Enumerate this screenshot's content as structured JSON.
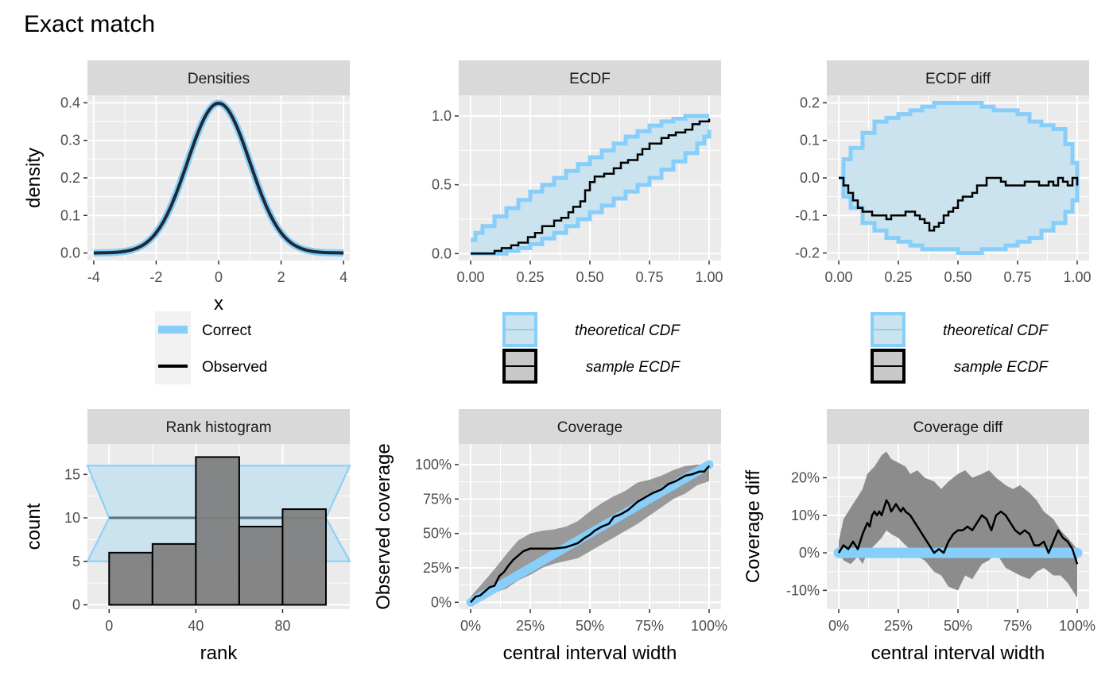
{
  "title": "Exact match",
  "colors": {
    "panel_bg": "#ebebeb",
    "strip_bg": "#d9d9d9",
    "grid": "#ffffff",
    "correct": "#87cefa",
    "band_fill": "#cbe3ee",
    "observed": "#000000",
    "hist_fill": "#7f7f7f",
    "cov_band": "#999999",
    "cov_diff_band": "#8c8c8c"
  },
  "chart_data": [
    {
      "id": "densities",
      "type": "line",
      "strip": "Densities",
      "xlabel": "x",
      "ylabel": "density",
      "xlim": [
        -4.2,
        4.2
      ],
      "ylim": [
        -0.02,
        0.42
      ],
      "xticks": [
        -4,
        -2,
        0,
        2,
        4
      ],
      "xtick_labels": [
        "-4",
        "-2",
        "0",
        "2",
        "4"
      ],
      "yticks": [
        0.0,
        0.1,
        0.2,
        0.3,
        0.4
      ],
      "ytick_labels": [
        "0.0",
        "0.1",
        "0.2",
        "0.3",
        "0.4"
      ],
      "series": [
        {
          "name": "Correct",
          "kind": "normal_density",
          "mean": 0,
          "sd": 1,
          "x_range": [
            -4,
            4
          ]
        },
        {
          "name": "Observed",
          "kind": "normal_density",
          "mean": 0,
          "sd": 1,
          "x_range": [
            -4,
            4
          ]
        }
      ],
      "legend": {
        "entries": [
          "Correct",
          "Observed"
        ]
      }
    },
    {
      "id": "ecdf",
      "type": "step",
      "strip": "ECDF",
      "xlim": [
        -0.05,
        1.05
      ],
      "ylim": [
        -0.05,
        1.15
      ],
      "xticks": [
        0,
        0.25,
        0.5,
        0.75,
        1
      ],
      "xtick_labels": [
        "0.00",
        "0.25",
        "0.50",
        "0.75",
        "1.00"
      ],
      "yticks": [
        0,
        0.5,
        1
      ],
      "ytick_labels": [
        "0.0",
        "0.5",
        "1.0"
      ],
      "band": {
        "x": [
          0,
          0.02,
          0.05,
          0.1,
          0.15,
          0.2,
          0.25,
          0.3,
          0.35,
          0.4,
          0.45,
          0.5,
          0.55,
          0.6,
          0.65,
          0.7,
          0.75,
          0.8,
          0.85,
          0.9,
          0.95,
          0.98,
          1
        ],
        "lower": [
          0,
          0,
          0,
          0,
          0.02,
          0.04,
          0.07,
          0.11,
          0.15,
          0.2,
          0.25,
          0.3,
          0.35,
          0.4,
          0.45,
          0.5,
          0.55,
          0.61,
          0.67,
          0.73,
          0.8,
          0.85,
          0.9
        ],
        "upper": [
          0.1,
          0.15,
          0.2,
          0.27,
          0.33,
          0.39,
          0.45,
          0.5,
          0.55,
          0.6,
          0.65,
          0.7,
          0.75,
          0.8,
          0.85,
          0.89,
          0.93,
          0.96,
          0.98,
          1,
          1,
          1,
          1
        ]
      },
      "ecdf": {
        "x": [
          0,
          0.1,
          0.13,
          0.17,
          0.2,
          0.24,
          0.27,
          0.3,
          0.35,
          0.38,
          0.41,
          0.43,
          0.46,
          0.48,
          0.5,
          0.52,
          0.56,
          0.6,
          0.63,
          0.66,
          0.7,
          0.72,
          0.75,
          0.78,
          0.8,
          0.83,
          0.86,
          0.9,
          0.93,
          0.96,
          1
        ],
        "y": [
          0,
          0.02,
          0.04,
          0.06,
          0.08,
          0.12,
          0.15,
          0.2,
          0.24,
          0.26,
          0.3,
          0.34,
          0.38,
          0.46,
          0.52,
          0.56,
          0.58,
          0.62,
          0.66,
          0.68,
          0.72,
          0.76,
          0.8,
          0.8,
          0.84,
          0.86,
          0.88,
          0.9,
          0.94,
          0.96,
          0.98
        ]
      },
      "legend": {
        "entries": [
          "theoretical CDF",
          "sample ECDF"
        ]
      }
    },
    {
      "id": "ecdf_diff",
      "type": "step",
      "strip": "ECDF diff",
      "xlim": [
        -0.05,
        1.05
      ],
      "ylim": [
        -0.22,
        0.22
      ],
      "xticks": [
        0,
        0.25,
        0.5,
        0.75,
        1
      ],
      "xtick_labels": [
        "0.00",
        "0.25",
        "0.50",
        "0.75",
        "1.00"
      ],
      "yticks": [
        -0.2,
        -0.1,
        0,
        0.1,
        0.2
      ],
      "ytick_labels": [
        "-0.2",
        "-0.1",
        "0.0",
        "0.1",
        "0.2"
      ],
      "band": {
        "x": [
          0,
          0.02,
          0.05,
          0.1,
          0.15,
          0.2,
          0.25,
          0.3,
          0.35,
          0.4,
          0.45,
          0.5,
          0.55,
          0.6,
          0.65,
          0.7,
          0.75,
          0.8,
          0.85,
          0.9,
          0.95,
          0.98,
          1
        ],
        "lower": [
          0,
          -0.05,
          -0.08,
          -0.12,
          -0.14,
          -0.16,
          -0.17,
          -0.18,
          -0.19,
          -0.19,
          -0.19,
          -0.2,
          -0.2,
          -0.19,
          -0.19,
          -0.18,
          -0.17,
          -0.16,
          -0.14,
          -0.12,
          -0.09,
          -0.06,
          0
        ],
        "upper": [
          0,
          0.05,
          0.08,
          0.12,
          0.15,
          0.16,
          0.17,
          0.18,
          0.19,
          0.2,
          0.2,
          0.2,
          0.2,
          0.19,
          0.18,
          0.18,
          0.17,
          0.15,
          0.14,
          0.13,
          0.09,
          0.04,
          0
        ]
      },
      "ecdf": {
        "x": [
          0,
          0.02,
          0.04,
          0.06,
          0.08,
          0.1,
          0.12,
          0.14,
          0.16,
          0.18,
          0.2,
          0.22,
          0.24,
          0.26,
          0.28,
          0.3,
          0.32,
          0.34,
          0.36,
          0.38,
          0.4,
          0.42,
          0.44,
          0.46,
          0.48,
          0.5,
          0.52,
          0.54,
          0.56,
          0.58,
          0.6,
          0.62,
          0.64,
          0.66,
          0.68,
          0.7,
          0.72,
          0.74,
          0.76,
          0.78,
          0.8,
          0.82,
          0.84,
          0.86,
          0.88,
          0.9,
          0.92,
          0.94,
          0.96,
          0.98,
          1
        ],
        "y": [
          0,
          -0.02,
          -0.04,
          -0.06,
          -0.08,
          -0.09,
          -0.09,
          -0.1,
          -0.1,
          -0.1,
          -0.11,
          -0.1,
          -0.1,
          -0.1,
          -0.09,
          -0.09,
          -0.1,
          -0.11,
          -0.12,
          -0.14,
          -0.13,
          -0.12,
          -0.1,
          -0.09,
          -0.08,
          -0.06,
          -0.05,
          -0.05,
          -0.04,
          -0.02,
          -0.02,
          0,
          0,
          0,
          -0.01,
          -0.02,
          -0.02,
          -0.02,
          -0.02,
          -0.01,
          -0.01,
          -0.01,
          -0.02,
          -0.02,
          -0.01,
          -0.02,
          0,
          -0.01,
          -0.02,
          0,
          -0.02
        ]
      },
      "legend": {
        "entries": [
          "theoretical CDF",
          "sample ECDF"
        ]
      }
    },
    {
      "id": "rank_hist",
      "type": "bar",
      "strip": "Rank histogram",
      "xlabel": "rank",
      "ylabel": "count",
      "xlim": [
        -10,
        111
      ],
      "ylim": [
        -0.5,
        18.5
      ],
      "xticks": [
        0,
        40,
        80
      ],
      "xtick_labels": [
        "0",
        "40",
        "80"
      ],
      "yticks": [
        0,
        5,
        10,
        15
      ],
      "ytick_labels": [
        "0",
        "5",
        "10",
        "15"
      ],
      "bins": [
        [
          0,
          20
        ],
        [
          20,
          40
        ],
        [
          40,
          60
        ],
        [
          60,
          80
        ],
        [
          80,
          100
        ]
      ],
      "values": [
        6,
        7,
        17,
        9,
        11
      ],
      "band": {
        "x_extent": [
          -10,
          111
        ],
        "outer_lower": 5,
        "outer_upper": 16,
        "center": 10,
        "center_x": [
          0,
          100
        ]
      }
    },
    {
      "id": "coverage",
      "type": "line",
      "strip": "Coverage",
      "xlabel": "central interval width",
      "ylabel": "Observed coverage",
      "xlim": [
        -0.05,
        1.05
      ],
      "ylim": [
        -0.05,
        1.15
      ],
      "xticks": [
        0,
        0.25,
        0.5,
        0.75,
        1
      ],
      "xtick_labels": [
        "0%",
        "25%",
        "50%",
        "75%",
        "100%"
      ],
      "yticks": [
        0,
        0.25,
        0.5,
        0.75,
        1
      ],
      "ytick_labels": [
        "0%",
        "25%",
        "50%",
        "75%",
        "100%"
      ],
      "band": {
        "x": [
          0,
          0.02,
          0.05,
          0.1,
          0.15,
          0.2,
          0.25,
          0.3,
          0.35,
          0.4,
          0.45,
          0.5,
          0.55,
          0.6,
          0.65,
          0.7,
          0.75,
          0.8,
          0.85,
          0.9,
          0.95,
          1
        ],
        "lower": [
          0,
          0,
          0.02,
          0.07,
          0.1,
          0.16,
          0.2,
          0.25,
          0.28,
          0.3,
          0.32,
          0.37,
          0.42,
          0.47,
          0.52,
          0.57,
          0.63,
          0.69,
          0.75,
          0.79,
          0.85,
          0.88
        ],
        "upper": [
          0.04,
          0.08,
          0.14,
          0.24,
          0.35,
          0.45,
          0.5,
          0.52,
          0.53,
          0.55,
          0.59,
          0.66,
          0.72,
          0.77,
          0.81,
          0.87,
          0.89,
          0.92,
          0.96,
          0.99,
          1,
          1
        ]
      },
      "observed": {
        "x": [
          0,
          0.02,
          0.04,
          0.06,
          0.08,
          0.1,
          0.12,
          0.14,
          0.16,
          0.18,
          0.2,
          0.22,
          0.25,
          0.3,
          0.35,
          0.4,
          0.45,
          0.48,
          0.5,
          0.52,
          0.55,
          0.58,
          0.6,
          0.63,
          0.66,
          0.7,
          0.73,
          0.76,
          0.8,
          0.83,
          0.86,
          0.9,
          0.93,
          0.96,
          0.98,
          1
        ],
        "y": [
          0,
          0.04,
          0.05,
          0.08,
          0.11,
          0.12,
          0.19,
          0.22,
          0.27,
          0.31,
          0.34,
          0.37,
          0.39,
          0.39,
          0.39,
          0.4,
          0.43,
          0.47,
          0.49,
          0.52,
          0.55,
          0.57,
          0.62,
          0.64,
          0.67,
          0.73,
          0.76,
          0.79,
          0.82,
          0.86,
          0.88,
          0.92,
          0.93,
          0.95,
          0.95,
          0.99
        ]
      },
      "reference": {
        "x": [
          0,
          1
        ],
        "y": [
          0,
          1
        ]
      }
    },
    {
      "id": "coverage_diff",
      "type": "line",
      "strip": "Coverage diff",
      "xlabel": "central interval width",
      "ylabel": "Coverage diff",
      "xlim": [
        -0.05,
        1.05
      ],
      "ylim": [
        -0.15,
        0.29
      ],
      "xticks": [
        0,
        0.25,
        0.5,
        0.75,
        1
      ],
      "xtick_labels": [
        "0%",
        "25%",
        "50%",
        "75%",
        "100%"
      ],
      "yticks": [
        -0.1,
        0,
        0.1,
        0.2
      ],
      "ytick_labels": [
        "-10%",
        "0%",
        "10%",
        "20%"
      ],
      "band": {
        "x": [
          0,
          0.02,
          0.05,
          0.08,
          0.1,
          0.12,
          0.15,
          0.18,
          0.2,
          0.22,
          0.25,
          0.28,
          0.3,
          0.33,
          0.36,
          0.4,
          0.43,
          0.46,
          0.5,
          0.53,
          0.56,
          0.6,
          0.63,
          0.66,
          0.7,
          0.73,
          0.76,
          0.8,
          0.83,
          0.86,
          0.9,
          0.93,
          0.96,
          1
        ],
        "lower": [
          0,
          -0.02,
          -0.03,
          -0.01,
          -0.03,
          0.0,
          0.02,
          0.04,
          0.06,
          0.05,
          0.04,
          0.02,
          0.01,
          -0.01,
          -0.02,
          -0.05,
          -0.06,
          -0.09,
          -0.1,
          -0.06,
          -0.07,
          -0.03,
          -0.02,
          0.0,
          -0.04,
          -0.05,
          -0.06,
          -0.07,
          -0.05,
          -0.04,
          -0.06,
          -0.06,
          -0.08,
          -0.12
        ],
        "upper": [
          0.03,
          0.09,
          0.12,
          0.15,
          0.17,
          0.21,
          0.23,
          0.26,
          0.27,
          0.25,
          0.24,
          0.23,
          0.21,
          0.22,
          0.2,
          0.19,
          0.17,
          0.19,
          0.21,
          0.22,
          0.2,
          0.21,
          0.22,
          0.2,
          0.18,
          0.17,
          0.18,
          0.16,
          0.14,
          0.11,
          0.09,
          0.06,
          0.04,
          0.01
        ]
      },
      "observed": {
        "x": [
          0,
          0.02,
          0.04,
          0.06,
          0.08,
          0.1,
          0.12,
          0.13,
          0.14,
          0.15,
          0.16,
          0.17,
          0.18,
          0.19,
          0.2,
          0.21,
          0.22,
          0.23,
          0.24,
          0.25,
          0.26,
          0.27,
          0.28,
          0.3,
          0.32,
          0.34,
          0.36,
          0.38,
          0.4,
          0.42,
          0.44,
          0.46,
          0.48,
          0.5,
          0.52,
          0.54,
          0.56,
          0.58,
          0.6,
          0.62,
          0.64,
          0.66,
          0.68,
          0.7,
          0.72,
          0.74,
          0.76,
          0.78,
          0.8,
          0.82,
          0.84,
          0.86,
          0.88,
          0.9,
          0.92,
          0.94,
          0.96,
          0.98,
          1
        ],
        "y": [
          0.0,
          0.02,
          0.01,
          0.03,
          0.01,
          0.05,
          0.08,
          0.07,
          0.1,
          0.11,
          0.1,
          0.11,
          0.1,
          0.12,
          0.14,
          0.13,
          0.11,
          0.12,
          0.13,
          0.12,
          0.11,
          0.12,
          0.11,
          0.1,
          0.08,
          0.06,
          0.04,
          0.02,
          0.0,
          0.01,
          0.0,
          0.03,
          0.05,
          0.06,
          0.06,
          0.07,
          0.06,
          0.08,
          0.1,
          0.09,
          0.06,
          0.1,
          0.11,
          0.1,
          0.08,
          0.06,
          0.05,
          0.06,
          0.05,
          0.02,
          0.02,
          0.03,
          0.0,
          0.03,
          0.06,
          0.04,
          0.03,
          0.01,
          -0.03
        ]
      },
      "reference": {
        "x": [
          0,
          1
        ],
        "y": [
          0,
          0
        ]
      }
    }
  ]
}
